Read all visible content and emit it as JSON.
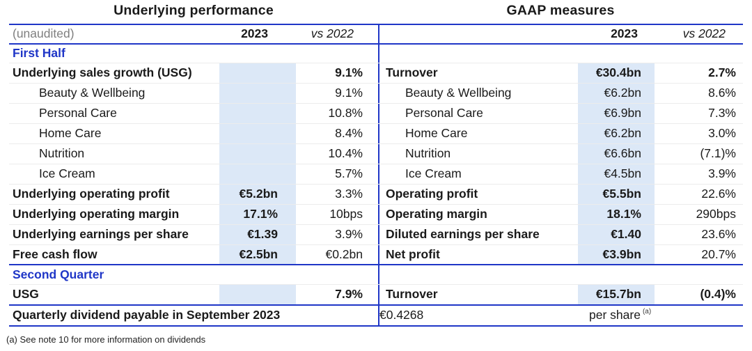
{
  "titles": {
    "left": "Underlying performance",
    "right": "GAAP measures"
  },
  "header": {
    "unaudited": "(unaudited)",
    "col_2023": "2023",
    "col_vs_2022": "vs 2022"
  },
  "sections": {
    "first_half": "First Half",
    "second_quarter": "Second Quarter"
  },
  "colors": {
    "brand_blue": "#1f36c7",
    "highlight_band": "#dce8f7"
  },
  "first_half_rows": [
    {
      "l": {
        "label": "Underlying sales growth (USG)",
        "v": "",
        "vs": "9.1%"
      },
      "r": {
        "label": "Turnover",
        "v": "€30.4bn",
        "vs": "2.7%"
      }
    },
    {
      "l": {
        "label": "Beauty & Wellbeing",
        "v": "",
        "vs": "9.1%"
      },
      "r": {
        "label": "Beauty & Wellbeing",
        "v": "€6.2bn",
        "vs": "8.6%"
      }
    },
    {
      "l": {
        "label": "Personal Care",
        "v": "",
        "vs": "10.8%"
      },
      "r": {
        "label": "Personal Care",
        "v": "€6.9bn",
        "vs": "7.3%"
      }
    },
    {
      "l": {
        "label": "Home Care",
        "v": "",
        "vs": "8.4%"
      },
      "r": {
        "label": "Home Care",
        "v": "€6.2bn",
        "vs": "3.0%"
      }
    },
    {
      "l": {
        "label": "Nutrition",
        "v": "",
        "vs": "10.4%"
      },
      "r": {
        "label": "Nutrition",
        "v": "€6.6bn",
        "vs": "(7.1)%"
      }
    },
    {
      "l": {
        "label": "Ice Cream",
        "v": "",
        "vs": "5.7%"
      },
      "r": {
        "label": "Ice Cream",
        "v": "€4.5bn",
        "vs": "3.9%"
      }
    },
    {
      "l": {
        "label": "Underlying operating profit",
        "v": "€5.2bn",
        "vs": "3.3%"
      },
      "r": {
        "label": "Operating profit",
        "v": "€5.5bn",
        "vs": "22.6%"
      }
    },
    {
      "l": {
        "label": "Underlying operating margin",
        "v": "17.1%",
        "vs": "10bps"
      },
      "r": {
        "label": "Operating margin",
        "v": "18.1%",
        "vs": "290bps"
      }
    },
    {
      "l": {
        "label": "Underlying earnings per share",
        "v": "€1.39",
        "vs": "3.9%"
      },
      "r": {
        "label": "Diluted earnings per share",
        "v": "€1.40",
        "vs": "23.6%"
      }
    },
    {
      "l": {
        "label": "Free cash flow",
        "v": "€2.5bn",
        "vs": "€0.2bn"
      },
      "r": {
        "label": "Net profit",
        "v": "€3.9bn",
        "vs": "20.7%"
      }
    }
  ],
  "second_quarter_row": {
    "l": {
      "label": "USG",
      "v": "",
      "vs": "7.9%"
    },
    "r": {
      "label": "Turnover",
      "v": "€15.7bn",
      "vs": "(0.4)%"
    }
  },
  "dividend": {
    "label": "Quarterly dividend payable in September 2023",
    "value": "€0.4268",
    "unit": "per share",
    "note_ref": "(a)"
  },
  "footnote": "(a) See note 10 for more information on dividends"
}
